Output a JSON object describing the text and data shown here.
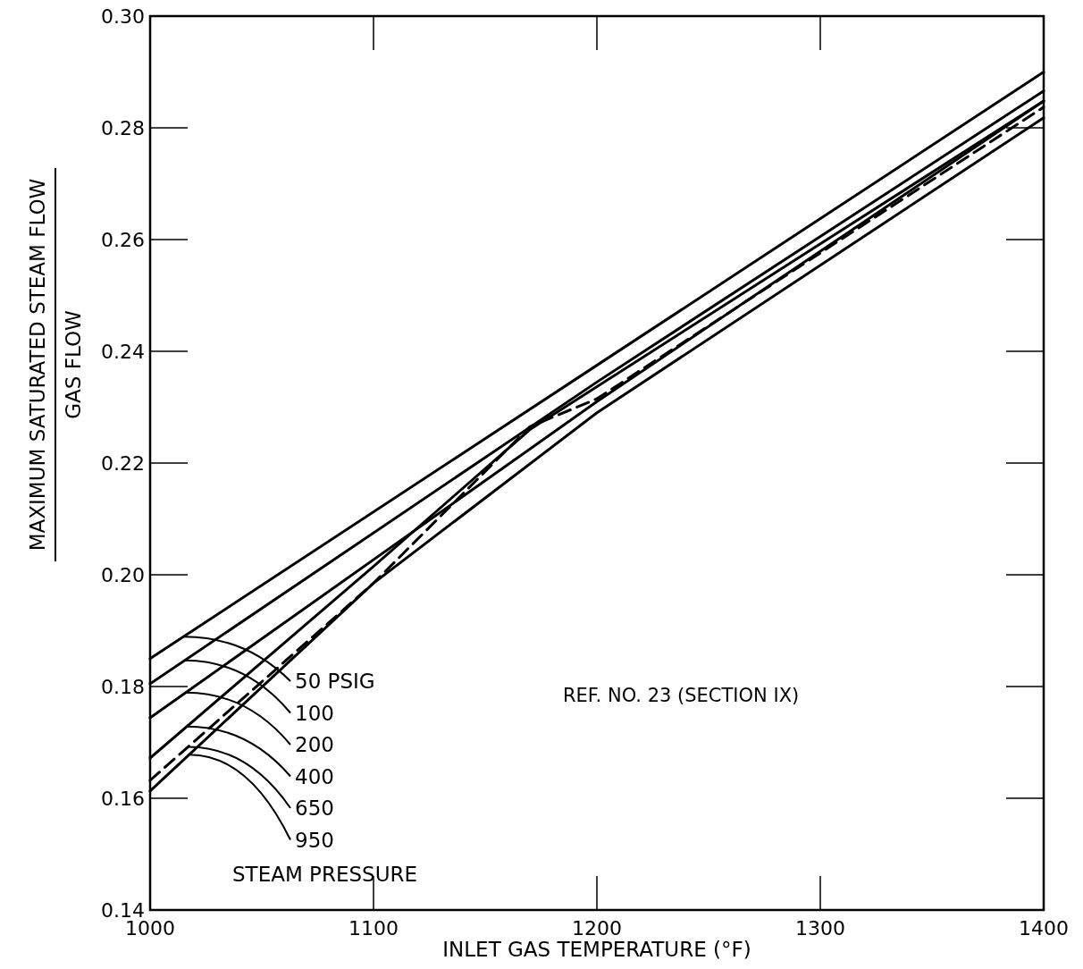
{
  "chart_data": {
    "type": "line",
    "xlabel": "INLET GAS TEMPERATURE (°F)",
    "ylabel": "MAXIMUM SATURATED STEAM FLOW\nGAS FLOW",
    "legend_title": "STEAM PRESSURE",
    "annotations": [
      "REF. NO. 23 (SECTION IX)"
    ],
    "xlim": [
      1000,
      1400
    ],
    "ylim": [
      0.14,
      0.3
    ],
    "xticks": [
      1000,
      1100,
      1200,
      1300,
      1400
    ],
    "yticks": [
      {
        "value": 0.14,
        "label": "0.14"
      },
      {
        "value": 0.16,
        "label": "0.16"
      },
      {
        "value": 0.18,
        "label": "0.18"
      },
      {
        "value": 0.2,
        "label": "0.20"
      },
      {
        "value": 0.22,
        "label": "0.22"
      },
      {
        "value": 0.24,
        "label": "0.24"
      },
      {
        "value": 0.26,
        "label": "0.26"
      },
      {
        "value": 0.28,
        "label": "0.28"
      },
      {
        "value": 0.3,
        "label": "0.30"
      }
    ],
    "grid": false,
    "marker": "none",
    "series": [
      {
        "name": "50 PSIG",
        "color": "#000000",
        "line_style": "solid",
        "x": [
          1000,
          1200,
          1400
        ],
        "values": [
          0.185,
          0.2375,
          0.29
        ]
      },
      {
        "name": "100",
        "color": "#000000",
        "line_style": "solid",
        "x": [
          1000,
          1200,
          1400
        ],
        "values": [
          0.1805,
          0.2345,
          0.2866
        ]
      },
      {
        "name": "200",
        "color": "#000000",
        "line_style": "solid",
        "x": [
          1000,
          1200,
          1400
        ],
        "values": [
          0.1744,
          0.231,
          0.2848
        ]
      },
      {
        "name": "400",
        "color": "#000000",
        "line_style": "solid",
        "x": [
          1000,
          1100,
          1170,
          1400
        ],
        "values": [
          0.1672,
          0.2015,
          0.226,
          0.2848
        ]
      },
      {
        "name": "650",
        "color": "#000000",
        "line_style": "dashed",
        "x": [
          1000,
          1100,
          1170,
          1200,
          1400
        ],
        "values": [
          0.1632,
          0.1985,
          0.2265,
          0.2315,
          0.2837
        ]
      },
      {
        "name": "950",
        "color": "#000000",
        "line_style": "solid",
        "x": [
          1000,
          1100,
          1200,
          1400
        ],
        "values": [
          0.1613,
          0.1985,
          0.229,
          0.2818
        ]
      }
    ]
  }
}
